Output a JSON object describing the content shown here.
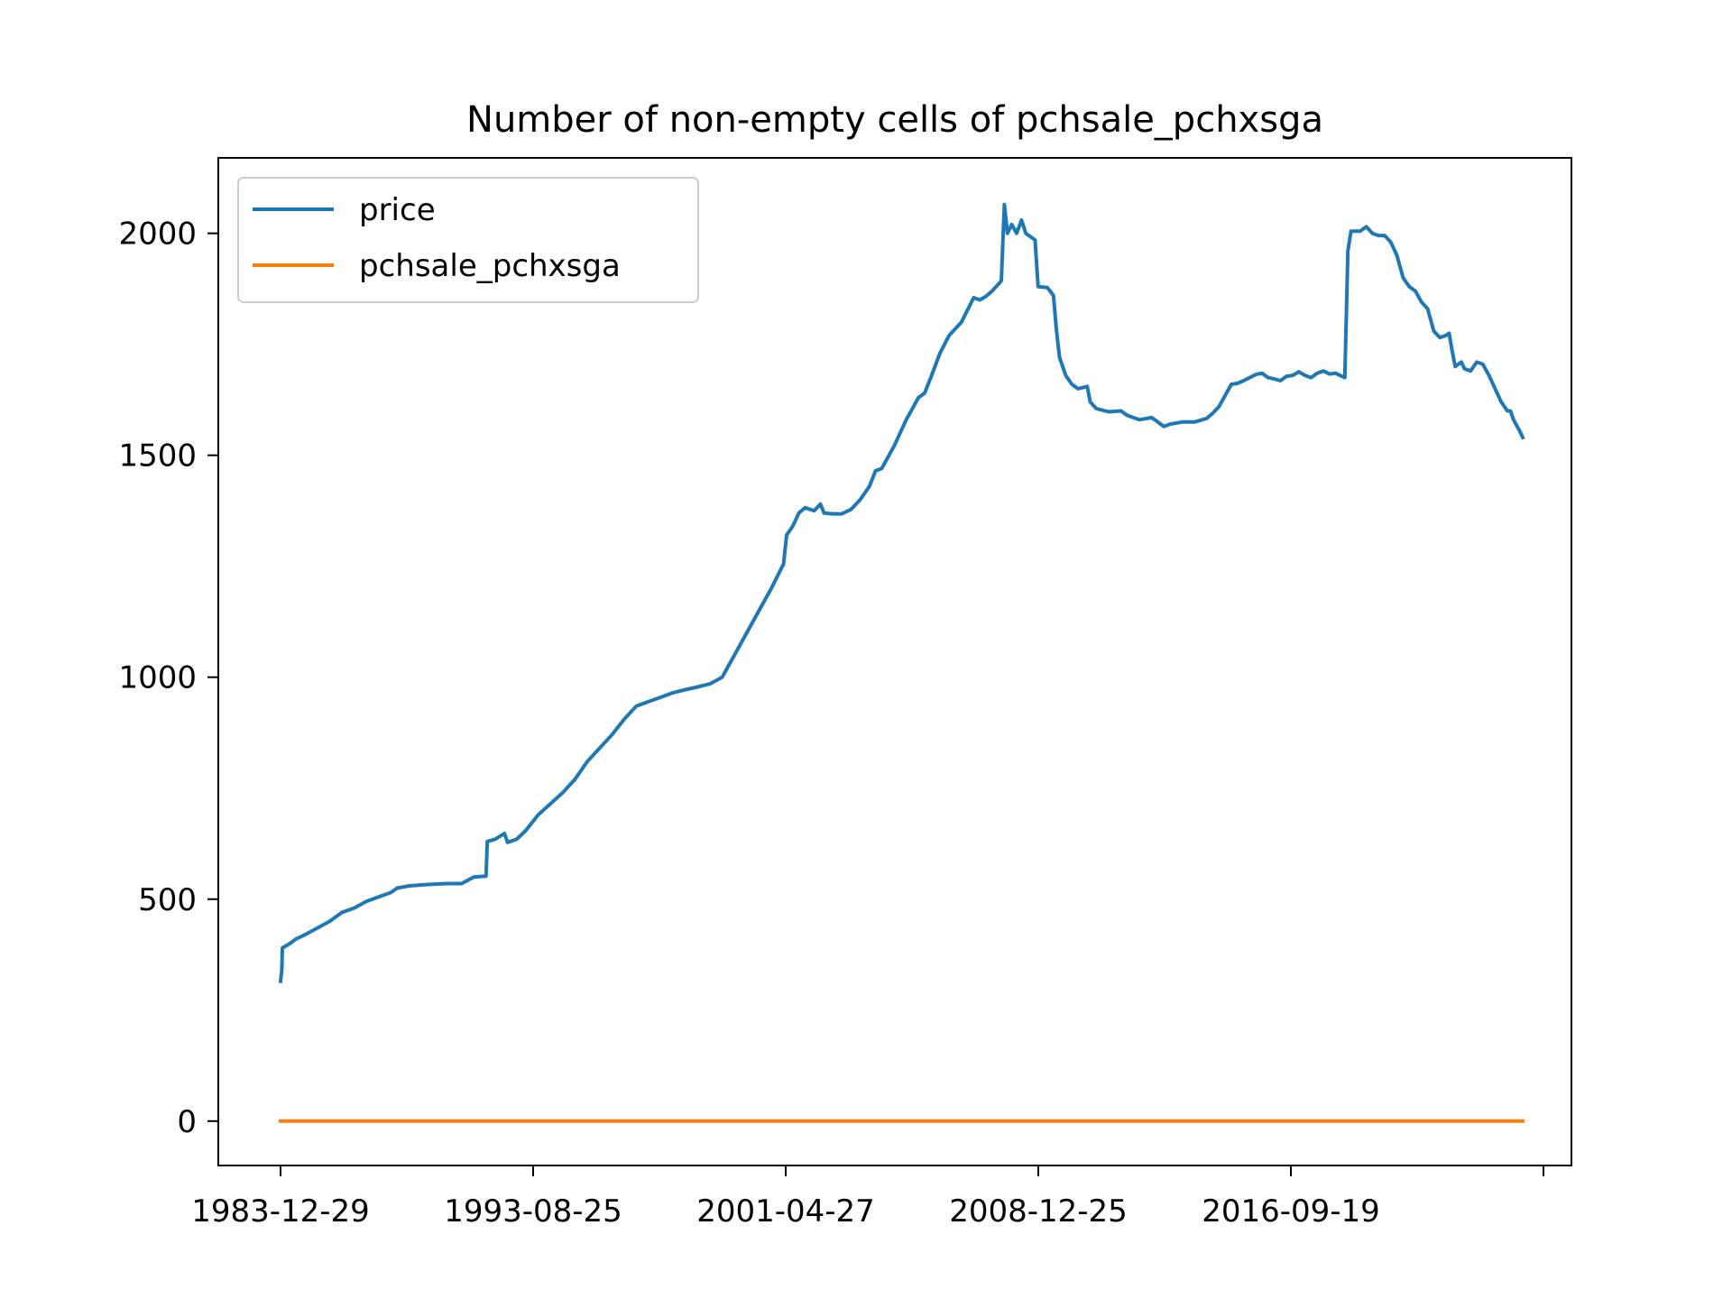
{
  "chart_data": {
    "type": "line",
    "title": "Number of non-empty cells of pchsale_pchxsga",
    "xlabel": "",
    "ylabel": "",
    "x_tick_labels": [
      "1983-12-29",
      "1993-08-25",
      "2001-04-27",
      "2008-12-25",
      "2016-09-19",
      ""
    ],
    "y_tick_labels": [
      "0",
      "500",
      "1000",
      "1500",
      "2000"
    ],
    "y_ticks": [
      0,
      500,
      1000,
      1500,
      2000
    ],
    "ylim": [
      -100,
      2170
    ],
    "grid": false,
    "legend_position": "upper left",
    "series": [
      {
        "name": "price",
        "color": "#1f77b4",
        "points": [
          [
            0,
            315
          ],
          [
            0.2,
            340
          ],
          [
            0.3,
            390
          ],
          [
            1.5,
            400
          ],
          [
            2.5,
            410
          ],
          [
            4,
            420
          ],
          [
            6,
            435
          ],
          [
            8,
            450
          ],
          [
            10,
            470
          ],
          [
            12,
            480
          ],
          [
            14,
            495
          ],
          [
            16,
            505
          ],
          [
            18,
            515
          ],
          [
            19,
            525
          ],
          [
            21,
            530
          ],
          [
            24,
            533
          ],
          [
            27,
            535
          ],
          [
            29.5,
            535
          ],
          [
            31.5,
            550
          ],
          [
            33.5,
            552
          ],
          [
            33.7,
            630
          ],
          [
            35,
            635
          ],
          [
            36.5,
            648
          ],
          [
            37,
            628
          ],
          [
            38.5,
            635
          ],
          [
            40,
            655
          ],
          [
            42,
            690
          ],
          [
            44,
            715
          ],
          [
            46,
            740
          ],
          [
            48,
            770
          ],
          [
            50,
            810
          ],
          [
            52,
            840
          ],
          [
            54,
            870
          ],
          [
            56,
            905
          ],
          [
            58,
            935
          ],
          [
            60,
            945
          ],
          [
            62,
            955
          ],
          [
            64,
            965
          ],
          [
            66,
            972
          ],
          [
            68,
            978
          ],
          [
            70,
            985
          ],
          [
            72,
            1000
          ],
          [
            74,
            1050
          ],
          [
            76,
            1100
          ],
          [
            78,
            1150
          ],
          [
            80,
            1200
          ],
          [
            82,
            1255
          ],
          [
            82.5,
            1320
          ],
          [
            83.5,
            1340
          ],
          [
            84.5,
            1370
          ],
          [
            85.5,
            1382
          ],
          [
            87,
            1375
          ],
          [
            88,
            1390
          ],
          [
            88.6,
            1370
          ],
          [
            90,
            1368
          ],
          [
            91.5,
            1368
          ],
          [
            93,
            1378
          ],
          [
            94.5,
            1400
          ],
          [
            96,
            1430
          ],
          [
            97,
            1465
          ],
          [
            98,
            1470
          ],
          [
            100,
            1520
          ],
          [
            102,
            1580
          ],
          [
            104,
            1630
          ],
          [
            105,
            1640
          ],
          [
            106,
            1675
          ],
          [
            107.5,
            1730
          ],
          [
            109,
            1770
          ],
          [
            111,
            1800
          ],
          [
            113,
            1855
          ],
          [
            114,
            1850
          ],
          [
            115,
            1858
          ],
          [
            116,
            1870
          ],
          [
            117,
            1885
          ],
          [
            117.5,
            1893
          ],
          [
            118,
            2065
          ],
          [
            118.5,
            2000
          ],
          [
            119.2,
            2020
          ],
          [
            120,
            2000
          ],
          [
            120.8,
            2030
          ],
          [
            121.5,
            2000
          ],
          [
            122.5,
            1990
          ],
          [
            123,
            1985
          ],
          [
            123.5,
            1880
          ],
          [
            125,
            1878
          ],
          [
            126,
            1860
          ],
          [
            126.5,
            1780
          ],
          [
            127,
            1720
          ],
          [
            128,
            1680
          ],
          [
            129,
            1660
          ],
          [
            130,
            1650
          ],
          [
            131.5,
            1655
          ],
          [
            132,
            1620
          ],
          [
            133,
            1605
          ],
          [
            135,
            1598
          ],
          [
            137,
            1600
          ],
          [
            138,
            1590
          ],
          [
            139,
            1585
          ],
          [
            140,
            1580
          ],
          [
            142,
            1585
          ],
          [
            143,
            1575
          ],
          [
            144,
            1565
          ],
          [
            145,
            1570
          ],
          [
            147,
            1575
          ],
          [
            149,
            1575
          ],
          [
            151,
            1583
          ],
          [
            152,
            1595
          ],
          [
            153,
            1610
          ],
          [
            154,
            1635
          ],
          [
            155,
            1660
          ],
          [
            156,
            1662
          ],
          [
            157,
            1668
          ],
          [
            158,
            1675
          ],
          [
            159,
            1682
          ],
          [
            160,
            1685
          ],
          [
            161,
            1675
          ],
          [
            162,
            1672
          ],
          [
            163,
            1668
          ],
          [
            164,
            1678
          ],
          [
            165,
            1680
          ],
          [
            166,
            1688
          ],
          [
            167,
            1680
          ],
          [
            168,
            1675
          ],
          [
            169,
            1685
          ],
          [
            170,
            1690
          ],
          [
            171,
            1683
          ],
          [
            172,
            1685
          ],
          [
            173,
            1678
          ],
          [
            173.5,
            1675
          ],
          [
            174,
            1960
          ],
          [
            174.5,
            2005
          ],
          [
            176,
            2005
          ],
          [
            177,
            2015
          ],
          [
            178,
            2000
          ],
          [
            179,
            1995
          ],
          [
            180,
            1995
          ],
          [
            181,
            1980
          ],
          [
            182,
            1950
          ],
          [
            183,
            1900
          ],
          [
            184,
            1880
          ],
          [
            185,
            1870
          ],
          [
            186,
            1845
          ],
          [
            187,
            1830
          ],
          [
            188,
            1780
          ],
          [
            189,
            1765
          ],
          [
            190,
            1770
          ],
          [
            190.5,
            1775
          ],
          [
            191,
            1735
          ],
          [
            191.5,
            1700
          ],
          [
            192.5,
            1710
          ],
          [
            193,
            1695
          ],
          [
            194,
            1690
          ],
          [
            195,
            1710
          ],
          [
            196,
            1705
          ],
          [
            197,
            1680
          ],
          [
            198,
            1650
          ],
          [
            199,
            1620
          ],
          [
            200,
            1600
          ],
          [
            200.5,
            1600
          ],
          [
            201,
            1580
          ],
          [
            202,
            1555
          ],
          [
            202.5,
            1540
          ]
        ]
      },
      {
        "name": "pchsale_pchxsga",
        "color": "#ff7f0e",
        "points": [
          [
            0,
            0
          ],
          [
            202.5,
            0
          ]
        ]
      }
    ]
  }
}
